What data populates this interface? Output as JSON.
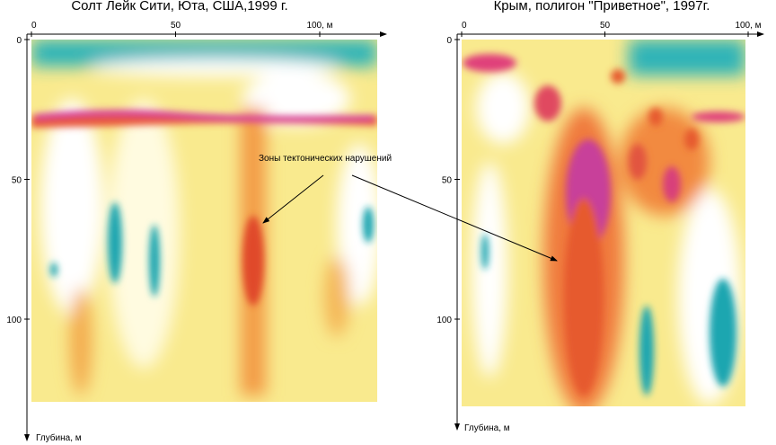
{
  "panels": [
    {
      "title": "Солт Лейк Сити, Юта, США,1999 г.",
      "x_ticks": [
        "0",
        "50",
        "100, м"
      ],
      "y_ticks": [
        "0",
        "50",
        "100"
      ],
      "y_label": "Глубина, м"
    },
    {
      "title": "Крым, полигон \"Приветное\", 1997г.",
      "x_ticks": [
        "0",
        "50",
        "100, м"
      ],
      "y_ticks": [
        "0",
        "50",
        "100"
      ],
      "y_label": "Глубина, м"
    }
  ],
  "annotation": "Зоны тектонических нарушений"
}
